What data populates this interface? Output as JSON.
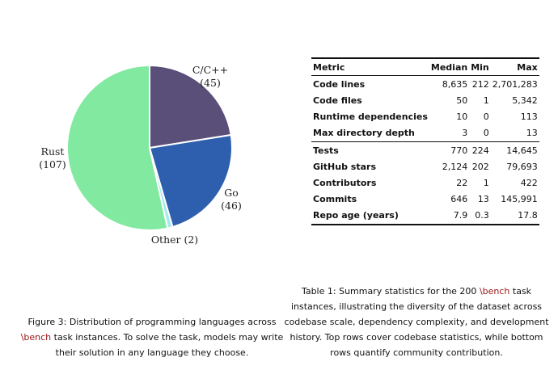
{
  "figure": {
    "chart_data": {
      "type": "pie",
      "slices": [
        {
          "name": "C/C++",
          "value": 45,
          "color": "#5a4f78"
        },
        {
          "name": "Go",
          "value": 46,
          "color": "#2e5fae"
        },
        {
          "name": "Other",
          "value": 2,
          "color": "#a6e8ee"
        },
        {
          "name": "Rust",
          "value": 107,
          "color": "#82e9a0"
        }
      ],
      "labels": [
        {
          "name": "C/C++",
          "count": "(45)"
        },
        {
          "name": "Go",
          "count": "(46)"
        },
        {
          "name": "Other (2)",
          "count": ""
        },
        {
          "name": "Rust",
          "count": "(107)"
        }
      ]
    },
    "caption": {
      "prefix": "Figure 3:  Distribution of programming languages across ",
      "command": "\\bench",
      "suffix": " task instances. To solve the task, models may write their solution in any language they choose."
    }
  },
  "table": {
    "headers": [
      "Metric",
      "Median",
      "Min",
      "Max"
    ],
    "rows": [
      [
        "Code lines",
        "8,635",
        "212",
        "2,701,283"
      ],
      [
        "Code files",
        "50",
        "1",
        "5,342"
      ],
      [
        "Runtime dependencies",
        "10",
        "0",
        "113"
      ],
      [
        "Max directory depth",
        "3",
        "0",
        "13"
      ],
      [
        "Tests",
        "770",
        "224",
        "14,645"
      ],
      [
        "GitHub stars",
        "2,124",
        "202",
        "79,693"
      ],
      [
        "Contributors",
        "22",
        "1",
        "422"
      ],
      [
        "Commits",
        "646",
        "13",
        "145,991"
      ],
      [
        "Repo age (years)",
        "7.9",
        "0.3",
        "17.8"
      ]
    ],
    "caption": {
      "prefix": "Table 1: Summary statistics for the 200 ",
      "command": "\\bench",
      "suffix": " task instances, illustrating the diversity of the dataset across codebase scale, dependency complexity, and development history. Top rows cover codebase statistics, while bottom rows quantify community contribution."
    }
  }
}
